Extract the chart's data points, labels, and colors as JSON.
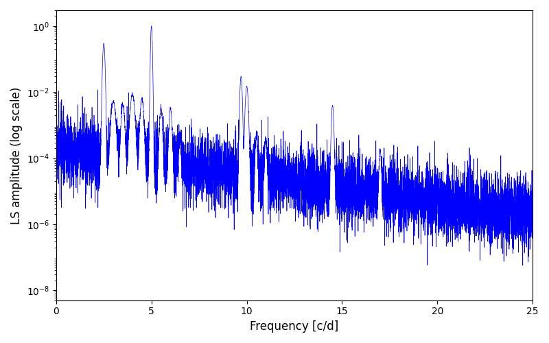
{
  "xlabel": "Frequency [c/d]",
  "ylabel": "LS amplitude (log scale)",
  "xlim": [
    0,
    25
  ],
  "ylim_bottom": 5e-09,
  "ylim_top": 3.0,
  "line_color": "#0000ff",
  "line_width": 0.5,
  "background_color": "#ffffff",
  "figsize": [
    8.0,
    5.0
  ],
  "dpi": 100,
  "freq_max": 25.0,
  "n_points": 8000,
  "random_seed": 17,
  "peaks": [
    {
      "freq": 2.5,
      "amp": 0.3,
      "sigma": 0.04
    },
    {
      "freq": 3.0,
      "amp": 0.005,
      "sigma": 0.08
    },
    {
      "freq": 3.5,
      "amp": 0.004,
      "sigma": 0.06
    },
    {
      "freq": 4.0,
      "amp": 0.008,
      "sigma": 0.08
    },
    {
      "freq": 4.5,
      "amp": 0.006,
      "sigma": 0.06
    },
    {
      "freq": 5.0,
      "amp": 1.0,
      "sigma": 0.03
    },
    {
      "freq": 5.5,
      "amp": 0.003,
      "sigma": 0.05
    },
    {
      "freq": 6.0,
      "amp": 0.003,
      "sigma": 0.05
    },
    {
      "freq": 6.5,
      "amp": 0.0003,
      "sigma": 0.04
    },
    {
      "freq": 9.7,
      "amp": 0.03,
      "sigma": 0.04
    },
    {
      "freq": 10.0,
      "amp": 0.015,
      "sigma": 0.05
    },
    {
      "freq": 10.5,
      "amp": 0.0004,
      "sigma": 0.04
    },
    {
      "freq": 11.0,
      "amp": 0.0003,
      "sigma": 0.04
    },
    {
      "freq": 14.5,
      "amp": 0.004,
      "sigma": 0.04
    },
    {
      "freq": 17.0,
      "amp": 0.00015,
      "sigma": 0.04
    }
  ],
  "yticks": [
    1e-08,
    1e-06,
    0.0001,
    0.01,
    1.0
  ],
  "xticks": [
    0,
    5,
    10,
    15,
    20,
    25
  ]
}
